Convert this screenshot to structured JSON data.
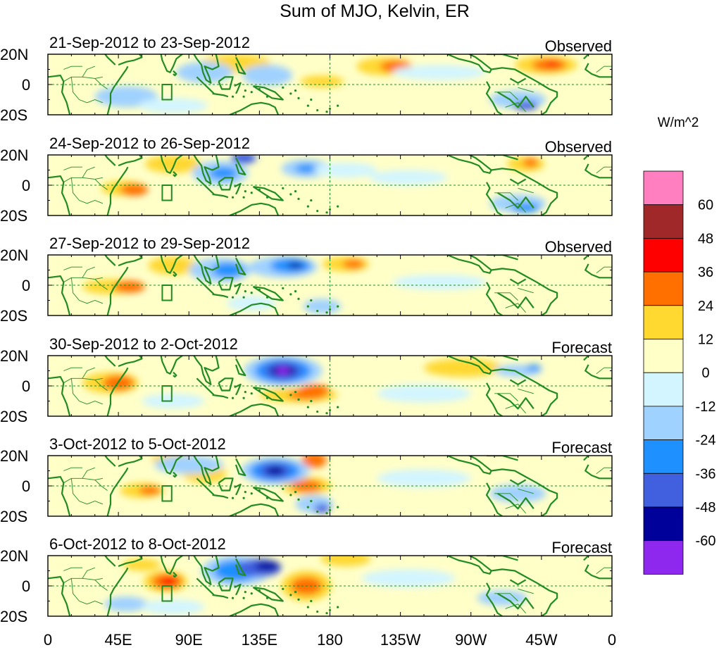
{
  "figure": {
    "title": "Sum of MJO, Kelvin, ER"
  },
  "x_axis": {
    "ticks": [
      "0",
      "45E",
      "90E",
      "135E",
      "180",
      "135W",
      "90W",
      "45W",
      "0"
    ]
  },
  "y_axis": {
    "ticks": [
      "20N",
      "0",
      "20S"
    ]
  },
  "panels": [
    {
      "date_range": "21-Sep-2012 to 23-Sep-2012",
      "status": "Observed"
    },
    {
      "date_range": "24-Sep-2012 to 26-Sep-2012",
      "status": "Observed"
    },
    {
      "date_range": "27-Sep-2012 to 29-Sep-2012",
      "status": "Observed"
    },
    {
      "date_range": "30-Sep-2012 to 2-Oct-2012",
      "status": "Forecast"
    },
    {
      "date_range": "3-Oct-2012 to 5-Oct-2012",
      "status": "Forecast"
    },
    {
      "date_range": "6-Oct-2012 to 8-Oct-2012",
      "status": "Forecast"
    }
  ],
  "colorbar": {
    "units": "W/m^2",
    "labels": [
      "60",
      "48",
      "36",
      "24",
      "12",
      "0",
      "-12",
      "-24",
      "-36",
      "-48",
      "-60"
    ],
    "colors": [
      "#ff7fc0",
      "#a02828",
      "#ff0000",
      "#ff7000",
      "#ffd830",
      "#ffffc8",
      "#d2f5ff",
      "#a0d2ff",
      "#1e90ff",
      "#4060e0",
      "#00009a",
      "#8e28ee"
    ]
  },
  "features": {
    "coastline_color": "#228b22",
    "dashed_lines": [
      "equator",
      "180"
    ]
  }
}
